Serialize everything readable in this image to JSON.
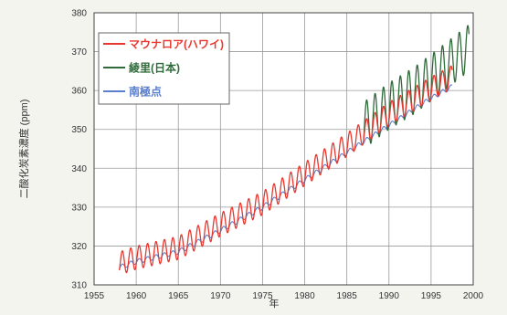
{
  "chart_data": {
    "type": "line",
    "title": "",
    "xlabel": "年",
    "ylabel": "二酸化炭素濃度 (ppm)",
    "xlim": [
      1955,
      2000
    ],
    "ylim": [
      310,
      380
    ],
    "x_ticks": [
      1955,
      1960,
      1965,
      1970,
      1975,
      1980,
      1985,
      1990,
      1995,
      2000
    ],
    "y_ticks": [
      310,
      320,
      330,
      340,
      350,
      360,
      370,
      380
    ],
    "grid": true,
    "legend_position": "top-left",
    "colors": {
      "mauna_loa": "#e8382f",
      "ryori": "#2f6b3a",
      "south_pole": "#5a7fd0",
      "grid": "#9a9a9a",
      "plot_background": "#ffffff",
      "page_background": "#f4f4ef"
    },
    "series": [
      {
        "key": "mauna_loa",
        "name": "マウナロア(ハワイ)",
        "trend_x": [
          1958,
          1960,
          1965,
          1970,
          1975,
          1980,
          1985,
          1990,
          1995,
          1997.5
        ],
        "trend_y": [
          315.5,
          317,
          319.5,
          325.5,
          331,
          338.5,
          346,
          354,
          360.5,
          363.5
        ],
        "seasonal_amplitude": 3
      },
      {
        "key": "ryori",
        "name": "綾里(日本)",
        "trend_x": [
          1987,
          1990,
          1993,
          1996,
          1999.5
        ],
        "trend_y": [
          351,
          356,
          360,
          365,
          371
        ],
        "seasonal_amplitude": 6
      },
      {
        "key": "south_pole",
        "name": "南極点",
        "trend_x": [
          1958,
          1960,
          1965,
          1970,
          1975,
          1980,
          1985,
          1990,
          1995,
          1997.5
        ],
        "trend_y": [
          314.5,
          316,
          318.5,
          324,
          330,
          337,
          344,
          351,
          358,
          361
        ],
        "seasonal_amplitude": 0.6
      }
    ]
  }
}
